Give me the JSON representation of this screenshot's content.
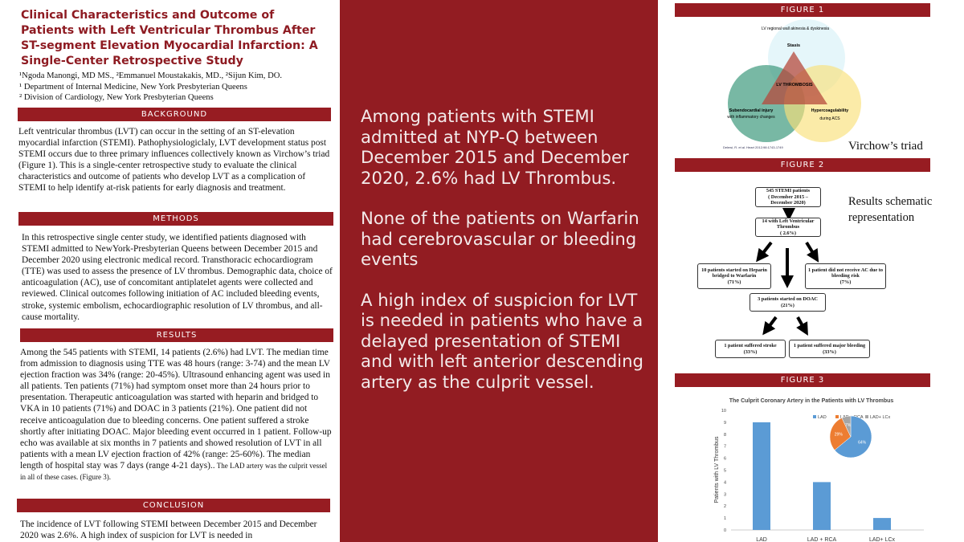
{
  "title": "Clinical Characteristics and Outcome of Patients with Left Ventricular Thrombus After ST-segment Elevation Myocardial Infarction: A Single-Center Retrospective Study",
  "authors": {
    "line1": "¹Ngoda Manongi, MD MS., ²Emmanuel Moustakakis, MD., ²Sijun Kim, DO.",
    "line2": "¹ Department of Internal Medicine, New York Presbyterian Queens",
    "line3": "² Division of Cardiology, New York Presbyterian Queens"
  },
  "sections": {
    "background": {
      "heading": "BACKGROUND",
      "text": "Left ventricular thrombus (LVT) can occur in the setting of an ST-elevation myocardial infarction (STEMI). Pathophysiologiclaly, LVT development status post STEMI occurs due to three primary influences collectively known as Virchow’s triad (Figure 1). This is a single-center retrospective study to evaluate the clinical characteristics and outcome of patients who develop LVT as a complication of STEMI to help identify at-risk patients for early diagnosis and treatment."
    },
    "methods": {
      "heading": "METHODS",
      "text": "In this retrospective single center study, we identified patients diagnosed with STEMI admitted to NewYork-Presbyterian Queens between December 2015 and December 2020 using electronic medical record. Transthoracic echocardiogram (TTE) was used to assess the presence of LV thrombus. Demographic data, choice of anticoagulation (AC), use of concomitant antiplatelet agents were collected and reviewed. Clinical outcomes following initiation of AC included bleeding events, stroke, systemic embolism, echocardiographic resolution of LV thrombus, and all-cause mortality."
    },
    "results": {
      "heading": "RESULTS",
      "text": "Among the 545 patients with STEMI, 14 patients (2.6%) had LVT. The median time from admission to diagnosis using TTE was 48 hours (range: 3-74) and the mean LV ejection fraction was 34% (range: 20-45%). Ultrasound enhancing agent was used in all patients. Ten patients (71%) had symptom onset more than 24 hours prior to presentation. Therapeutic anticoagulation was started with heparin and bridged to VKA in 10 patients (71%) and DOAC in 3 patients (21%). One patient did not receive anticoagulation due to bleeding concerns. One patient suffered a stroke shortly after initiating DOAC. Major bleeding event occurred in 1 patient. Follow-up echo was available at six months in 7 patients and showed resolution of LVT in all patients with a mean LV ejection fraction of 42% (range: 25-60%). The median length of hospital stay was 7 days (range 4-21 days)..",
      "text_small": " The LAD artery was the culprit vessel in all of these cases. (Figure 3)."
    },
    "conclusion": {
      "heading": "CONCLUSION",
      "text": "The incidence of LVT following STEMI between December 2015 and December 2020 was 2.6%. A high index of suspicion for LVT is needed in"
    }
  },
  "highlights": [
    "Among patients with STEMI admitted at NYP-Q between December 2015 and December 2020, 2.6% had LV Thrombus.",
    "None of the patients on Warfarin had cerebrovascular or bleeding events",
    "A high index of suspicion for LVT is needed in patients who have a delayed presentation of STEMI and with left anterior descending artery as the culprit vessel."
  ],
  "figure1": {
    "heading": "FIGURE 1",
    "stasis_note": "LV regional wall akinesia & dyskinesia",
    "stasis": "Stasis",
    "center": "LV THROMBOSIS",
    "left": "Subendocardial injury",
    "left_sub": "with inflammatory changes",
    "right": "Hypercoagulability",
    "right_sub": "during ACS",
    "citation": "Delewi, R. et al. Heart 2012;98:1743-1749",
    "caption": "Virchow’s triad"
  },
  "figure2": {
    "heading": "FIGURE 2",
    "caption": "Results schematic representation",
    "boxes": [
      {
        "l1": "545 STEMI patients",
        "l2": "( December 2015 – December 2020)"
      },
      {
        "l1": "14 with Left Ventricular Thrombus",
        "l2": "( 2.6%)"
      },
      {
        "l1": "10 patients started on Heparin bridged to Warfarin",
        "l2": "(71%)"
      },
      {
        "l1": "1 patient did not receive AC due to bleeding risk",
        "l2": "(7%)"
      },
      {
        "l1": "3 patients started on DOAC",
        "l2": "(21%)"
      },
      {
        "l1": "1 patient suffered stroke",
        "l2": "(33%)"
      },
      {
        "l1": "1 patient suffered major bleeding",
        "l2": "(33%)"
      }
    ]
  },
  "figure3": {
    "heading": "FIGURE 3"
  },
  "chart_data": [
    {
      "type": "bar",
      "title": "The Culprit Coronary Artery in the Patients with LV Thrombus",
      "xlabel": "",
      "ylabel": "Patients with LV Thrombus",
      "categories": [
        "LAD",
        "LAD + RCA",
        "LAD+ LCx"
      ],
      "values": [
        9,
        4,
        1
      ],
      "ylim": [
        0,
        10
      ],
      "yticks": [
        0,
        1,
        2,
        3,
        4,
        5,
        6,
        7,
        8,
        9,
        10
      ],
      "grid": false,
      "color": "#5b9bd5"
    },
    {
      "type": "pie",
      "categories": [
        "LAD",
        "LAD + RCA",
        "LAD+ LCx"
      ],
      "values": [
        64,
        29,
        7
      ],
      "labels": [
        "64%",
        "29%",
        "7%"
      ],
      "colors": [
        "#5b9bd5",
        "#ed7d31",
        "#a5a5a5"
      ],
      "legend": "top"
    }
  ],
  "colors": {
    "brand": "#921c22",
    "title": "#8e1b22"
  }
}
